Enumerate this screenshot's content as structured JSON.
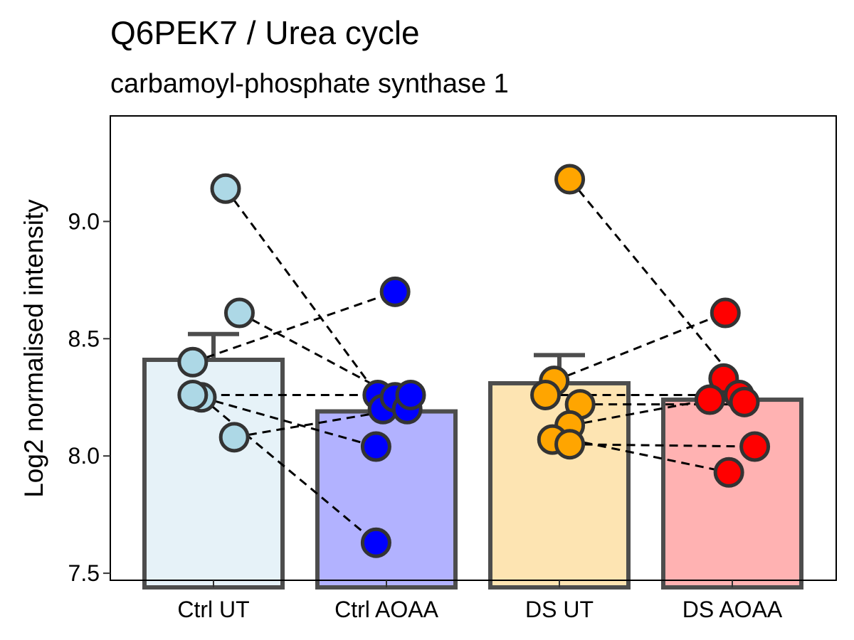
{
  "chart_data": {
    "type": "bar",
    "title": "Q6PEK7 / Urea cycle",
    "subtitle": "carbamoyl-phosphate synthase 1",
    "xlabel": "",
    "ylabel": "Log2 normalised intensity",
    "categories": [
      "Ctrl UT",
      "Ctrl AOAA",
      "DS UT",
      "DS AOAA"
    ],
    "ylim": [
      7.47,
      9.45
    ],
    "yticks": [
      7.5,
      8.0,
      8.5,
      9.0
    ],
    "ytick_labels": [
      "7.5",
      "8.0",
      "8.5",
      "9.0"
    ],
    "grid": false,
    "legend": "none",
    "bars": [
      {
        "category": "Ctrl UT",
        "mean": 8.41,
        "error_upper": 8.52,
        "fill": "#e6f2f8",
        "point_color": "#add8e6"
      },
      {
        "category": "Ctrl AOAA",
        "mean": 8.19,
        "error_upper": null,
        "fill": "#b2b2ff",
        "point_color": "#0000ff"
      },
      {
        "category": "DS UT",
        "mean": 8.31,
        "error_upper": 8.43,
        "fill": "#fde4b2",
        "point_color": "#ffa500"
      },
      {
        "category": "DS AOAA",
        "mean": 8.24,
        "error_upper": null,
        "fill": "#ffb2b2",
        "point_color": "#ff0000"
      }
    ],
    "points": [
      {
        "category": "Ctrl UT",
        "jitter": 0.07,
        "y": 9.14
      },
      {
        "category": "Ctrl UT",
        "jitter": 0.15,
        "y": 8.61
      },
      {
        "category": "Ctrl UT",
        "jitter": -0.12,
        "y": 8.4
      },
      {
        "category": "Ctrl UT",
        "jitter": -0.07,
        "y": 8.25
      },
      {
        "category": "Ctrl UT",
        "jitter": -0.12,
        "y": 8.26
      },
      {
        "category": "Ctrl UT",
        "jitter": 0.12,
        "y": 8.08
      },
      {
        "category": "Ctrl AOAA",
        "jitter": 0.05,
        "y": 8.7
      },
      {
        "category": "Ctrl AOAA",
        "jitter": -0.05,
        "y": 8.26
      },
      {
        "category": "Ctrl AOAA",
        "jitter": -0.02,
        "y": 8.2
      },
      {
        "category": "Ctrl AOAA",
        "jitter": 0.05,
        "y": 8.25
      },
      {
        "category": "Ctrl AOAA",
        "jitter": 0.12,
        "y": 8.2
      },
      {
        "category": "Ctrl AOAA",
        "jitter": 0.14,
        "y": 8.26
      },
      {
        "category": "Ctrl AOAA",
        "jitter": -0.06,
        "y": 8.04
      },
      {
        "category": "Ctrl AOAA",
        "jitter": -0.06,
        "y": 7.63
      },
      {
        "category": "DS UT",
        "jitter": 0.06,
        "y": 9.18
      },
      {
        "category": "DS UT",
        "jitter": -0.03,
        "y": 8.32
      },
      {
        "category": "DS UT",
        "jitter": 0.12,
        "y": 8.22
      },
      {
        "category": "DS UT",
        "jitter": -0.08,
        "y": 8.26
      },
      {
        "category": "DS UT",
        "jitter": 0.06,
        "y": 8.13
      },
      {
        "category": "DS UT",
        "jitter": -0.04,
        "y": 8.07
      },
      {
        "category": "DS UT",
        "jitter": 0.06,
        "y": 8.05
      },
      {
        "category": "DS AOAA",
        "jitter": -0.04,
        "y": 8.61
      },
      {
        "category": "DS AOAA",
        "jitter": -0.05,
        "y": 8.33
      },
      {
        "category": "DS AOAA",
        "jitter": -0.13,
        "y": 8.24
      },
      {
        "category": "DS AOAA",
        "jitter": 0.04,
        "y": 8.26
      },
      {
        "category": "DS AOAA",
        "jitter": 0.07,
        "y": 8.23
      },
      {
        "category": "DS AOAA",
        "jitter": 0.13,
        "y": 8.04
      },
      {
        "category": "DS AOAA",
        "jitter": -0.02,
        "y": 7.93
      }
    ],
    "paired_lines": [
      {
        "from": [
          0.07,
          9.14
        ],
        "to": [
          0.95,
          8.26
        ]
      },
      {
        "from": [
          0.15,
          8.61
        ],
        "to": [
          1.06,
          8.25
        ]
      },
      {
        "from": [
          -0.12,
          8.4
        ],
        "to": [
          1.05,
          8.7
        ]
      },
      {
        "from": [
          -0.12,
          8.26
        ],
        "to": [
          1.14,
          8.26
        ]
      },
      {
        "from": [
          -0.07,
          8.25
        ],
        "to": [
          0.94,
          8.04
        ]
      },
      {
        "from": [
          -0.07,
          8.25
        ],
        "to": [
          0.94,
          7.63
        ]
      },
      {
        "from": [
          0.12,
          8.08
        ],
        "to": [
          1.08,
          8.2
        ]
      },
      {
        "from": [
          2.06,
          9.18
        ],
        "to": [
          3.1,
          8.25
        ]
      },
      {
        "from": [
          1.97,
          8.32
        ],
        "to": [
          2.96,
          8.61
        ]
      },
      {
        "from": [
          2.12,
          8.22
        ],
        "to": [
          3.13,
          8.22
        ]
      },
      {
        "from": [
          1.92,
          8.26
        ],
        "to": [
          3.04,
          8.26
        ]
      },
      {
        "from": [
          2.06,
          8.13
        ],
        "to": [
          2.87,
          8.24
        ]
      },
      {
        "from": [
          2.06,
          8.05
        ],
        "to": [
          3.13,
          8.04
        ]
      },
      {
        "from": [
          2.06,
          8.07
        ],
        "to": [
          2.98,
          7.93
        ]
      }
    ]
  }
}
